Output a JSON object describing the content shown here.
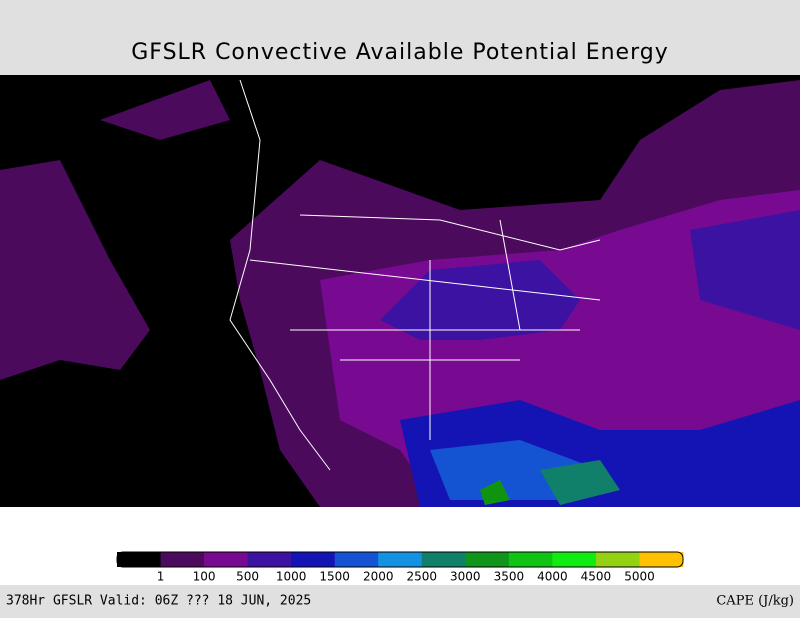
{
  "header": {
    "title": "GFSLR Convective Available Potential Energy"
  },
  "colorbar": {
    "labels": [
      "1",
      "100",
      "500",
      "1000",
      "1500",
      "2000",
      "2500",
      "3000",
      "3500",
      "4000",
      "4500",
      "5000"
    ],
    "colors": [
      "#000000",
      "#4b0a5c",
      "#780a92",
      "#3c12a2",
      "#1414b4",
      "#1454d2",
      "#1492e2",
      "#10806a",
      "#10941a",
      "#10c414",
      "#10ec10",
      "#94d014",
      "#ffc000"
    ]
  },
  "footer": {
    "left": "378Hr GFSLR Valid: 06Z ??? 18 JUN, 2025",
    "right": "CAPE (J/kg)"
  }
}
